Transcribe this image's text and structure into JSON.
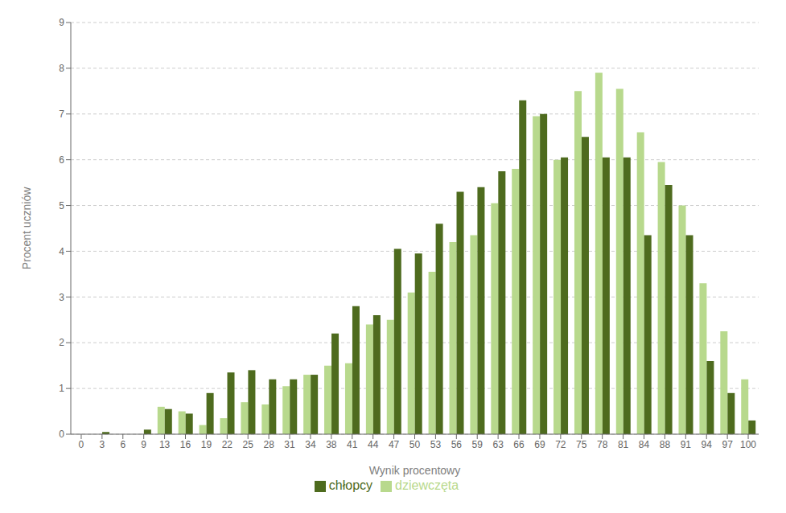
{
  "chart_data": {
    "type": "bar",
    "xlabel": "Wynik procentowy",
    "ylabel": "Procent uczniów",
    "categories": [
      "0",
      "3",
      "6",
      "9",
      "13",
      "16",
      "19",
      "22",
      "25",
      "28",
      "31",
      "34",
      "38",
      "41",
      "44",
      "47",
      "50",
      "53",
      "56",
      "59",
      "63",
      "66",
      "69",
      "72",
      "75",
      "78",
      "81",
      "84",
      "88",
      "91",
      "94",
      "97",
      "100"
    ],
    "series": [
      {
        "name": "dziewczęta",
        "color": "#B8D98D",
        "values": [
          0.0,
          0.0,
          0.0,
          0.0,
          0.6,
          0.5,
          0.2,
          0.35,
          0.7,
          0.65,
          1.05,
          1.3,
          1.5,
          1.55,
          2.4,
          2.5,
          3.1,
          3.55,
          4.2,
          4.35,
          5.05,
          5.8,
          6.95,
          6.0,
          7.5,
          7.9,
          7.55,
          6.6,
          5.95,
          5.0,
          3.3,
          2.25,
          1.2
        ]
      },
      {
        "name": "chłopcy",
        "color": "#4E6B1E",
        "values": [
          0.0,
          0.05,
          0.0,
          0.1,
          0.55,
          0.45,
          0.9,
          1.35,
          1.4,
          1.2,
          1.2,
          1.3,
          2.2,
          2.8,
          2.6,
          4.05,
          3.95,
          4.6,
          5.3,
          5.4,
          5.75,
          7.3,
          7.0,
          6.05,
          6.5,
          6.05,
          6.05,
          4.35,
          5.45,
          4.35,
          1.6,
          0.9,
          0.3
        ]
      }
    ],
    "ylim": [
      0,
      9
    ],
    "yticks": [
      0,
      1,
      2,
      3,
      4,
      5,
      6,
      7,
      8,
      9
    ],
    "grid": true,
    "legend": "bottom"
  }
}
